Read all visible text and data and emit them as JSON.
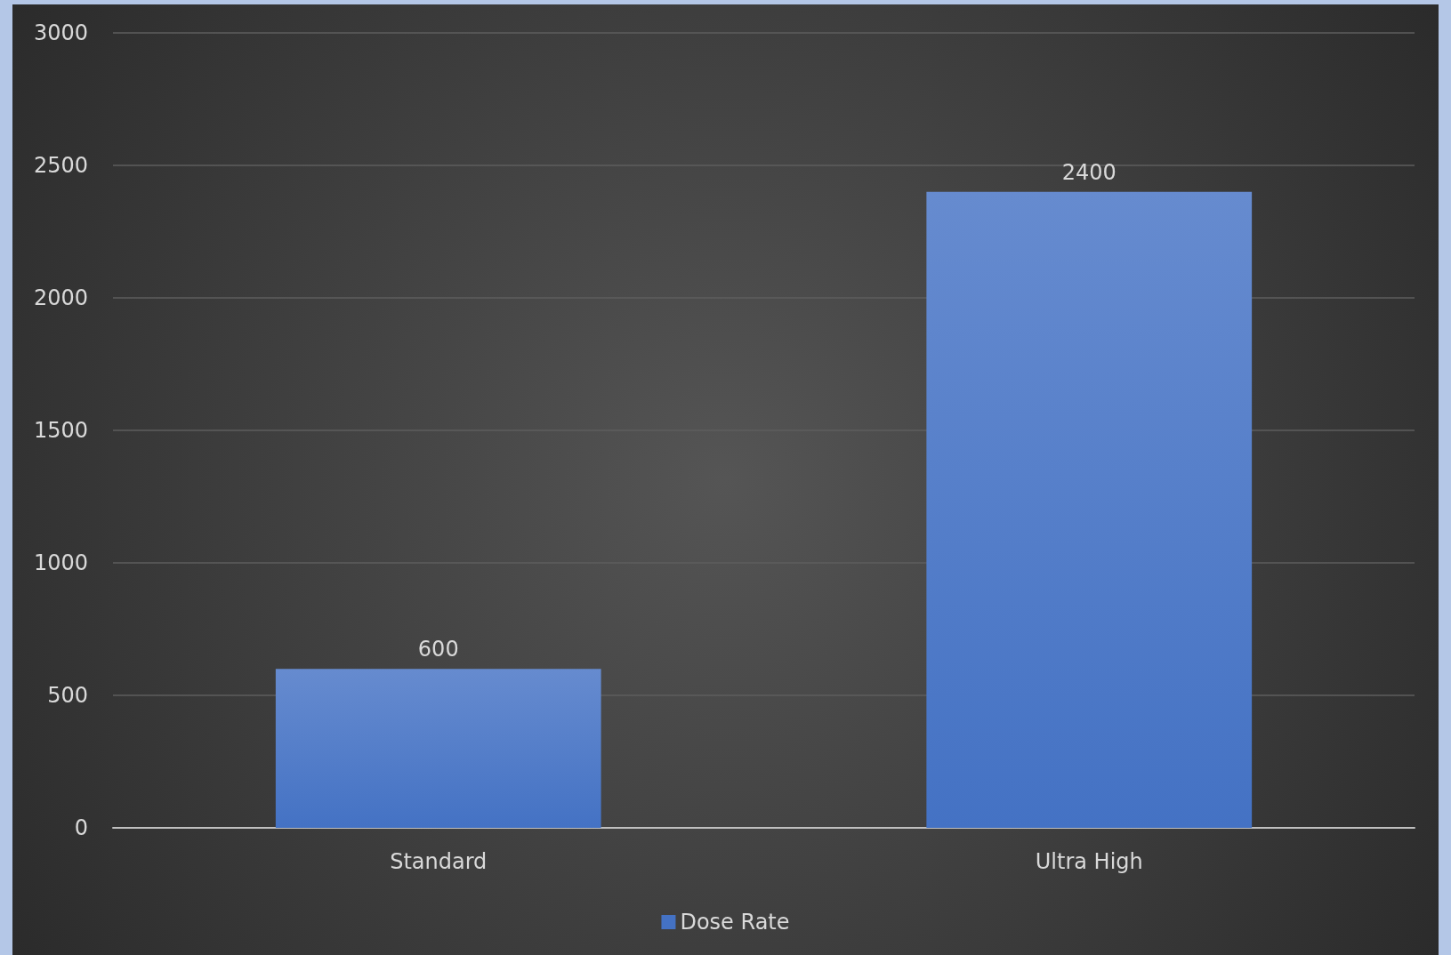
{
  "chart_data": {
    "type": "bar",
    "categories": [
      "Standard",
      "Ultra High"
    ],
    "series": [
      {
        "name": "Dose Rate",
        "color": "#4472c4",
        "values": [
          600,
          2400
        ]
      }
    ],
    "ylim": [
      0,
      3000
    ],
    "yticks": [
      0,
      500,
      1000,
      1500,
      2000,
      2500,
      3000
    ],
    "grid": "y",
    "legend": "bottom",
    "data_labels": true
  }
}
